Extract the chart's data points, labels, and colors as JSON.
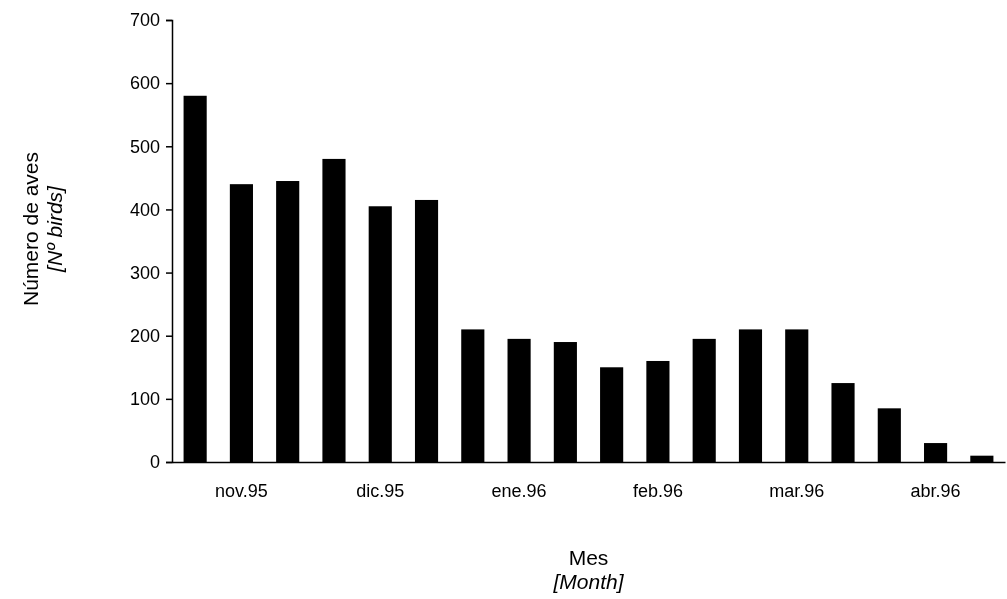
{
  "chart_data": {
    "type": "bar",
    "xlabel": "Mes\n[Month]",
    "ylabel": "Número de aves\n[Nº birds]",
    "categories": [
      null,
      "nov.95",
      null,
      null,
      "dic.95",
      null,
      null,
      "ene.96",
      null,
      null,
      "feb.96",
      null,
      null,
      "mar.96",
      null,
      null,
      "abr.96",
      null
    ],
    "values": [
      580,
      440,
      445,
      480,
      405,
      415,
      210,
      195,
      190,
      150,
      160,
      195,
      210,
      210,
      125,
      85,
      30,
      10
    ],
    "color": "#000000",
    "ylim": [
      0,
      700
    ],
    "yticks": [
      0,
      100,
      200,
      300,
      400,
      500,
      600,
      700
    ],
    "grid": false
  }
}
